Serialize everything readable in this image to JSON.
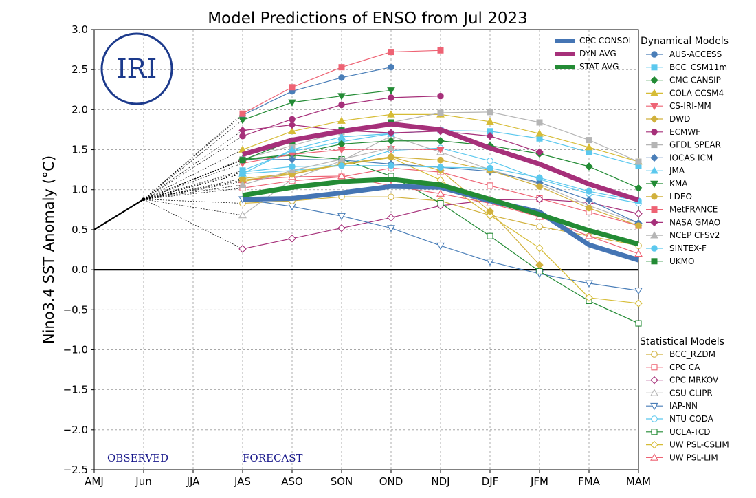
{
  "chart_data": {
    "type": "line",
    "title": "Model Predictions of ENSO from Jul 2023",
    "ylabel": "Nino3.4 SST Anomaly (°C)",
    "xlabel": "",
    "categories": [
      "AMJ",
      "Jun",
      "JJA",
      "JAS",
      "ASO",
      "SON",
      "OND",
      "NDJ",
      "DJF",
      "JFM",
      "FMA",
      "MAM"
    ],
    "ylim": [
      -2.5,
      3.0
    ],
    "yticks": [
      "3.0",
      "2.5",
      "2.0",
      "1.5",
      "1.0",
      "0.5",
      "0.0",
      "−0.5",
      "−1.0",
      "−1.5",
      "−2.0",
      "−2.5"
    ],
    "grid": true,
    "observed": {
      "label": "OBSERVED",
      "x": [
        0,
        1
      ],
      "values": [
        0.5,
        0.88
      ]
    },
    "forecast_label": "FORECAST",
    "logo_text": "IRI",
    "legend_groups": {
      "consensus": [
        {
          "name": "CPC CONSOL",
          "color": "#4575b4"
        },
        {
          "name": "DYN AVG",
          "color": "#a6307a"
        },
        {
          "name": "STAT AVG",
          "color": "#238b35"
        }
      ],
      "dynamical_title": "Dynamical Models",
      "statistical_title": "Statistical Models"
    },
    "consensus_series": [
      {
        "name": "CPC CONSOL",
        "color": "#4575b4",
        "start": 3,
        "values": [
          0.88,
          0.89,
          0.96,
          1.04,
          1.03,
          0.86,
          0.72,
          0.31,
          0.12
        ]
      },
      {
        "name": "DYN AVG",
        "color": "#a6307a",
        "start": 3,
        "values": [
          1.44,
          1.62,
          1.73,
          1.82,
          1.75,
          1.52,
          1.32,
          1.07,
          0.87
        ]
      },
      {
        "name": "STAT AVG",
        "color": "#238b35",
        "start": 3,
        "values": [
          0.93,
          1.03,
          1.1,
          1.13,
          1.06,
          0.88,
          0.69,
          0.49,
          0.32
        ]
      }
    ],
    "dynamical_series": [
      {
        "name": "AUS-ACCESS",
        "color": "#4a7eb8",
        "marker": "circle",
        "filled": true,
        "start": 3,
        "values": [
          1.93,
          2.23,
          2.4,
          2.53
        ]
      },
      {
        "name": "BCC_CSM11m",
        "color": "#5bc8ee",
        "marker": "square",
        "filled": true,
        "start": 3,
        "values": [
          1.24,
          1.48,
          1.6,
          1.7,
          1.74,
          1.73,
          1.64,
          1.47,
          1.3
        ]
      },
      {
        "name": "CMC CANSIP",
        "color": "#238b35",
        "marker": "diamond",
        "filled": true,
        "start": 3,
        "values": [
          1.38,
          1.44,
          1.57,
          1.61,
          1.61,
          1.55,
          1.45,
          1.29,
          1.02
        ]
      },
      {
        "name": "COLA CCSM4",
        "color": "#d6bc36",
        "marker": "triangle-up",
        "filled": true,
        "start": 3,
        "values": [
          1.5,
          1.73,
          1.86,
          1.94,
          1.94,
          1.85,
          1.7,
          1.53,
          1.35
        ]
      },
      {
        "name": "CS-IRI-MM",
        "color": "#ee6374",
        "marker": "triangle-down",
        "filled": true,
        "start": 3,
        "values": [
          1.33,
          1.44,
          1.5,
          1.51,
          1.5
        ]
      },
      {
        "name": "DWD",
        "color": "#d1b13d",
        "marker": "diamond",
        "filled": true,
        "start": 3,
        "values": [
          1.14,
          1.2,
          1.31,
          1.41,
          1.24,
          0.73,
          0.06
        ]
      },
      {
        "name": "ECMWF",
        "color": "#a6307a",
        "marker": "circle",
        "filled": true,
        "start": 3,
        "values": [
          1.67,
          1.88,
          2.06,
          2.15,
          2.17
        ]
      },
      {
        "name": "GFDL SPEAR",
        "color": "#b5b5b5",
        "marker": "square",
        "filled": true,
        "start": 3,
        "values": [
          1.38,
          1.55,
          1.72,
          1.84,
          1.96,
          1.97,
          1.84,
          1.62,
          1.35
        ]
      },
      {
        "name": "IOCAS ICM",
        "color": "#4a7eb8",
        "marker": "diamond",
        "filled": true,
        "start": 3,
        "values": [
          1.37,
          1.38,
          1.37,
          1.32,
          1.28,
          1.23,
          1.09,
          0.87,
          0.58
        ]
      },
      {
        "name": "JMA",
        "color": "#5bc8ee",
        "marker": "triangle-up",
        "filled": true,
        "start": 3,
        "values": [
          1.2,
          1.5,
          1.66,
          1.7
        ]
      },
      {
        "name": "KMA",
        "color": "#238b35",
        "marker": "triangle-down",
        "filled": true,
        "start": 3,
        "values": [
          1.87,
          2.09,
          2.17,
          2.24
        ]
      },
      {
        "name": "LDEO",
        "color": "#d1b13d",
        "marker": "circle",
        "filled": true,
        "start": 3,
        "values": [
          1.12,
          1.19,
          1.32,
          1.41,
          1.37,
          1.24,
          1.04,
          0.77,
          0.55
        ]
      },
      {
        "name": "MetFRANCE",
        "color": "#ee6374",
        "marker": "square",
        "filled": true,
        "start": 3,
        "values": [
          1.95,
          2.28,
          2.53,
          2.72,
          2.74
        ]
      },
      {
        "name": "NASA GMAO",
        "color": "#a6307a",
        "marker": "diamond",
        "filled": true,
        "start": 3,
        "values": [
          1.74,
          1.81,
          1.74,
          1.71,
          1.73,
          1.67,
          1.47
        ]
      },
      {
        "name": "NCEP CFSv2",
        "color": "#b5b5b5",
        "marker": "triangle-up",
        "filled": true,
        "start": 3,
        "values": [
          1.06,
          1.24,
          1.38,
          1.52
        ]
      },
      {
        "name": "SINTEX-F",
        "color": "#5bc8ee",
        "marker": "circle",
        "filled": true,
        "start": 3,
        "values": [
          1.22,
          1.29,
          1.3,
          1.3,
          1.28,
          1.27,
          1.15,
          0.98,
          0.86
        ]
      },
      {
        "name": "UKMO",
        "color": "#238b35",
        "marker": "square",
        "filled": true,
        "start": 3,
        "values": [
          1.37,
          1.61,
          1.74,
          1.84
        ]
      }
    ],
    "statistical_series": [
      {
        "name": "BCC_RZDM",
        "color": "#d1b13d",
        "marker": "circle",
        "filled": false,
        "start": 3,
        "values": [
          0.83,
          0.86,
          0.91,
          0.91,
          0.86,
          0.68,
          0.54,
          0.42,
          0.3
        ]
      },
      {
        "name": "CPC CA",
        "color": "#ee6374",
        "marker": "square",
        "filled": false,
        "start": 3,
        "values": [
          1.02,
          1.11,
          1.16,
          1.27,
          1.22,
          1.05,
          0.89,
          0.72,
          0.55
        ]
      },
      {
        "name": "CPC MRKOV",
        "color": "#a6307a",
        "marker": "diamond",
        "filled": false,
        "start": 3,
        "values": [
          0.26,
          0.39,
          0.52,
          0.65,
          0.8,
          0.87,
          0.88,
          0.84,
          0.7
        ]
      },
      {
        "name": "CSU CLIPR",
        "color": "#b5b5b5",
        "marker": "triangle-up",
        "filled": false,
        "start": 3,
        "values": [
          0.68,
          1.13,
          1.36,
          1.67,
          1.47,
          1.25,
          1.07,
          0.8,
          0.58
        ]
      },
      {
        "name": "IAP-NN",
        "color": "#4a7eb8",
        "marker": "triangle-down",
        "filled": false,
        "start": 3,
        "values": [
          0.88,
          0.79,
          0.67,
          0.52,
          0.3,
          0.1,
          -0.05,
          -0.17,
          -0.26
        ]
      },
      {
        "name": "NTU CODA",
        "color": "#5bc8ee",
        "marker": "circle",
        "filled": false,
        "start": 3,
        "values": [
          1.2,
          1.24,
          1.3,
          1.49,
          1.52,
          1.36,
          1.13,
          0.95,
          0.83
        ]
      },
      {
        "name": "UCLA-TCD",
        "color": "#238b35",
        "marker": "square",
        "filled": false,
        "start": 3,
        "values": [
          1.37,
          1.43,
          1.38,
          1.17,
          0.83,
          0.42,
          -0.02,
          -0.39,
          -0.67
        ]
      },
      {
        "name": "UW PSL-CSLIM",
        "color": "#d6bc36",
        "marker": "diamond",
        "filled": false,
        "start": 3,
        "values": [
          1.1,
          1.22,
          1.31,
          1.4,
          1.12,
          0.68,
          0.27,
          -0.35,
          -0.42
        ]
      },
      {
        "name": "UW PSL-LIM",
        "color": "#ee6374",
        "marker": "triangle-up",
        "filled": false,
        "start": 3,
        "values": [
          1.12,
          1.16,
          1.17,
          1.05,
          0.95,
          0.83,
          0.66,
          0.42,
          0.2
        ]
      }
    ]
  }
}
